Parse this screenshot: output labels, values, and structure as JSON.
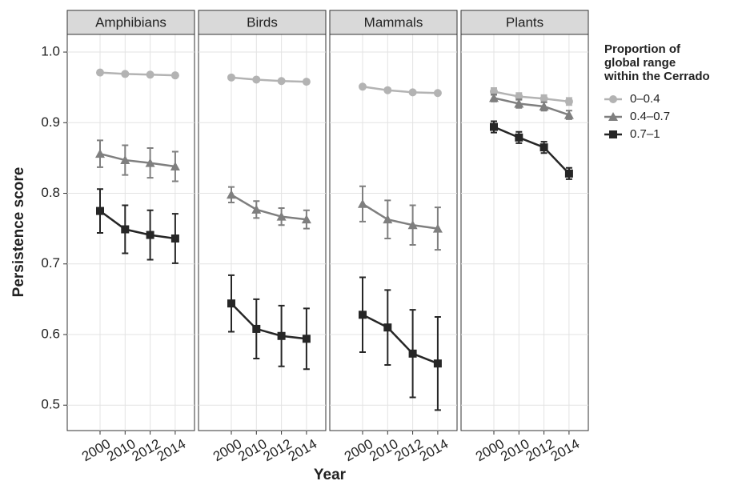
{
  "y_label": "Persistence score",
  "x_label": "Year",
  "ylim": [
    0.464,
    1.025
  ],
  "yticks": [
    0.5,
    0.6,
    0.7,
    0.8,
    0.9,
    {
      "value": 1,
      "label": "1.0"
    }
  ],
  "grid": true,
  "legend": {
    "title": [
      "Proportion of",
      "global range",
      "within the Cerrado"
    ],
    "corner": "right"
  },
  "chart_data": [
    {
      "type": "line",
      "title": "Amphibians",
      "categories": [
        "2000",
        "2010",
        "2012",
        "2014"
      ],
      "series": [
        {
          "name": "0–0.4",
          "color": "#b3b3b3",
          "marker": "circle",
          "values": [
            0.971,
            0.969,
            0.968,
            0.967
          ],
          "errors": [
            0.002,
            0.002,
            0.002,
            0.002
          ]
        },
        {
          "name": "0.4–0.7",
          "color": "#7f7f7f",
          "marker": "triangle",
          "values": [
            0.856,
            0.847,
            0.843,
            0.838
          ],
          "errors": [
            0.019,
            0.021,
            0.021,
            0.021
          ]
        },
        {
          "name": "0.7–1",
          "color": "#262626",
          "marker": "square",
          "values": [
            0.775,
            0.749,
            0.741,
            0.736
          ],
          "errors": [
            0.031,
            0.034,
            0.035,
            0.035
          ]
        }
      ]
    },
    {
      "type": "line",
      "title": "Birds",
      "categories": [
        "2000",
        "2010",
        "2012",
        "2014"
      ],
      "series": [
        {
          "name": "0–0.4",
          "color": "#b3b3b3",
          "marker": "circle",
          "values": [
            0.964,
            0.961,
            0.959,
            0.958
          ],
          "errors": [
            0.002,
            0.002,
            0.002,
            0.002
          ]
        },
        {
          "name": "0.4–0.7",
          "color": "#7f7f7f",
          "marker": "triangle",
          "values": [
            0.798,
            0.777,
            0.767,
            0.763
          ],
          "errors": [
            0.011,
            0.012,
            0.012,
            0.013
          ]
        },
        {
          "name": "0.7–1",
          "color": "#262626",
          "marker": "square",
          "values": [
            0.644,
            0.608,
            0.598,
            0.594
          ],
          "errors": [
            0.04,
            0.042,
            0.043,
            0.043
          ]
        }
      ]
    },
    {
      "type": "line",
      "title": "Mammals",
      "categories": [
        "2000",
        "2010",
        "2012",
        "2014"
      ],
      "series": [
        {
          "name": "0–0.4",
          "color": "#b3b3b3",
          "marker": "circle",
          "values": [
            0.951,
            0.946,
            0.943,
            0.942
          ],
          "errors": [
            0.002,
            0.002,
            0.002,
            0.002
          ]
        },
        {
          "name": "0.4–0.7",
          "color": "#7f7f7f",
          "marker": "triangle",
          "values": [
            0.785,
            0.763,
            0.755,
            0.75
          ],
          "errors": [
            0.025,
            0.027,
            0.028,
            0.03
          ]
        },
        {
          "name": "0.7–1",
          "color": "#262626",
          "marker": "square",
          "values": [
            0.628,
            0.61,
            0.573,
            0.559
          ],
          "errors": [
            0.053,
            0.053,
            0.062,
            0.066
          ]
        }
      ]
    },
    {
      "type": "line",
      "title": "Plants",
      "categories": [
        "2000",
        "2010",
        "2012",
        "2014"
      ],
      "series": [
        {
          "name": "0–0.4",
          "color": "#b3b3b3",
          "marker": "circle",
          "values": [
            0.944,
            0.937,
            0.934,
            0.93
          ],
          "errors": [
            0.005,
            0.005,
            0.005,
            0.005
          ]
        },
        {
          "name": "0.4–0.7",
          "color": "#7f7f7f",
          "marker": "triangle",
          "values": [
            0.935,
            0.927,
            0.923,
            0.911
          ],
          "errors": [
            0.005,
            0.006,
            0.006,
            0.006
          ]
        },
        {
          "name": "0.7–1",
          "color": "#262626",
          "marker": "square",
          "values": [
            0.894,
            0.879,
            0.865,
            0.828
          ],
          "errors": [
            0.008,
            0.008,
            0.008,
            0.008
          ]
        }
      ]
    }
  ]
}
